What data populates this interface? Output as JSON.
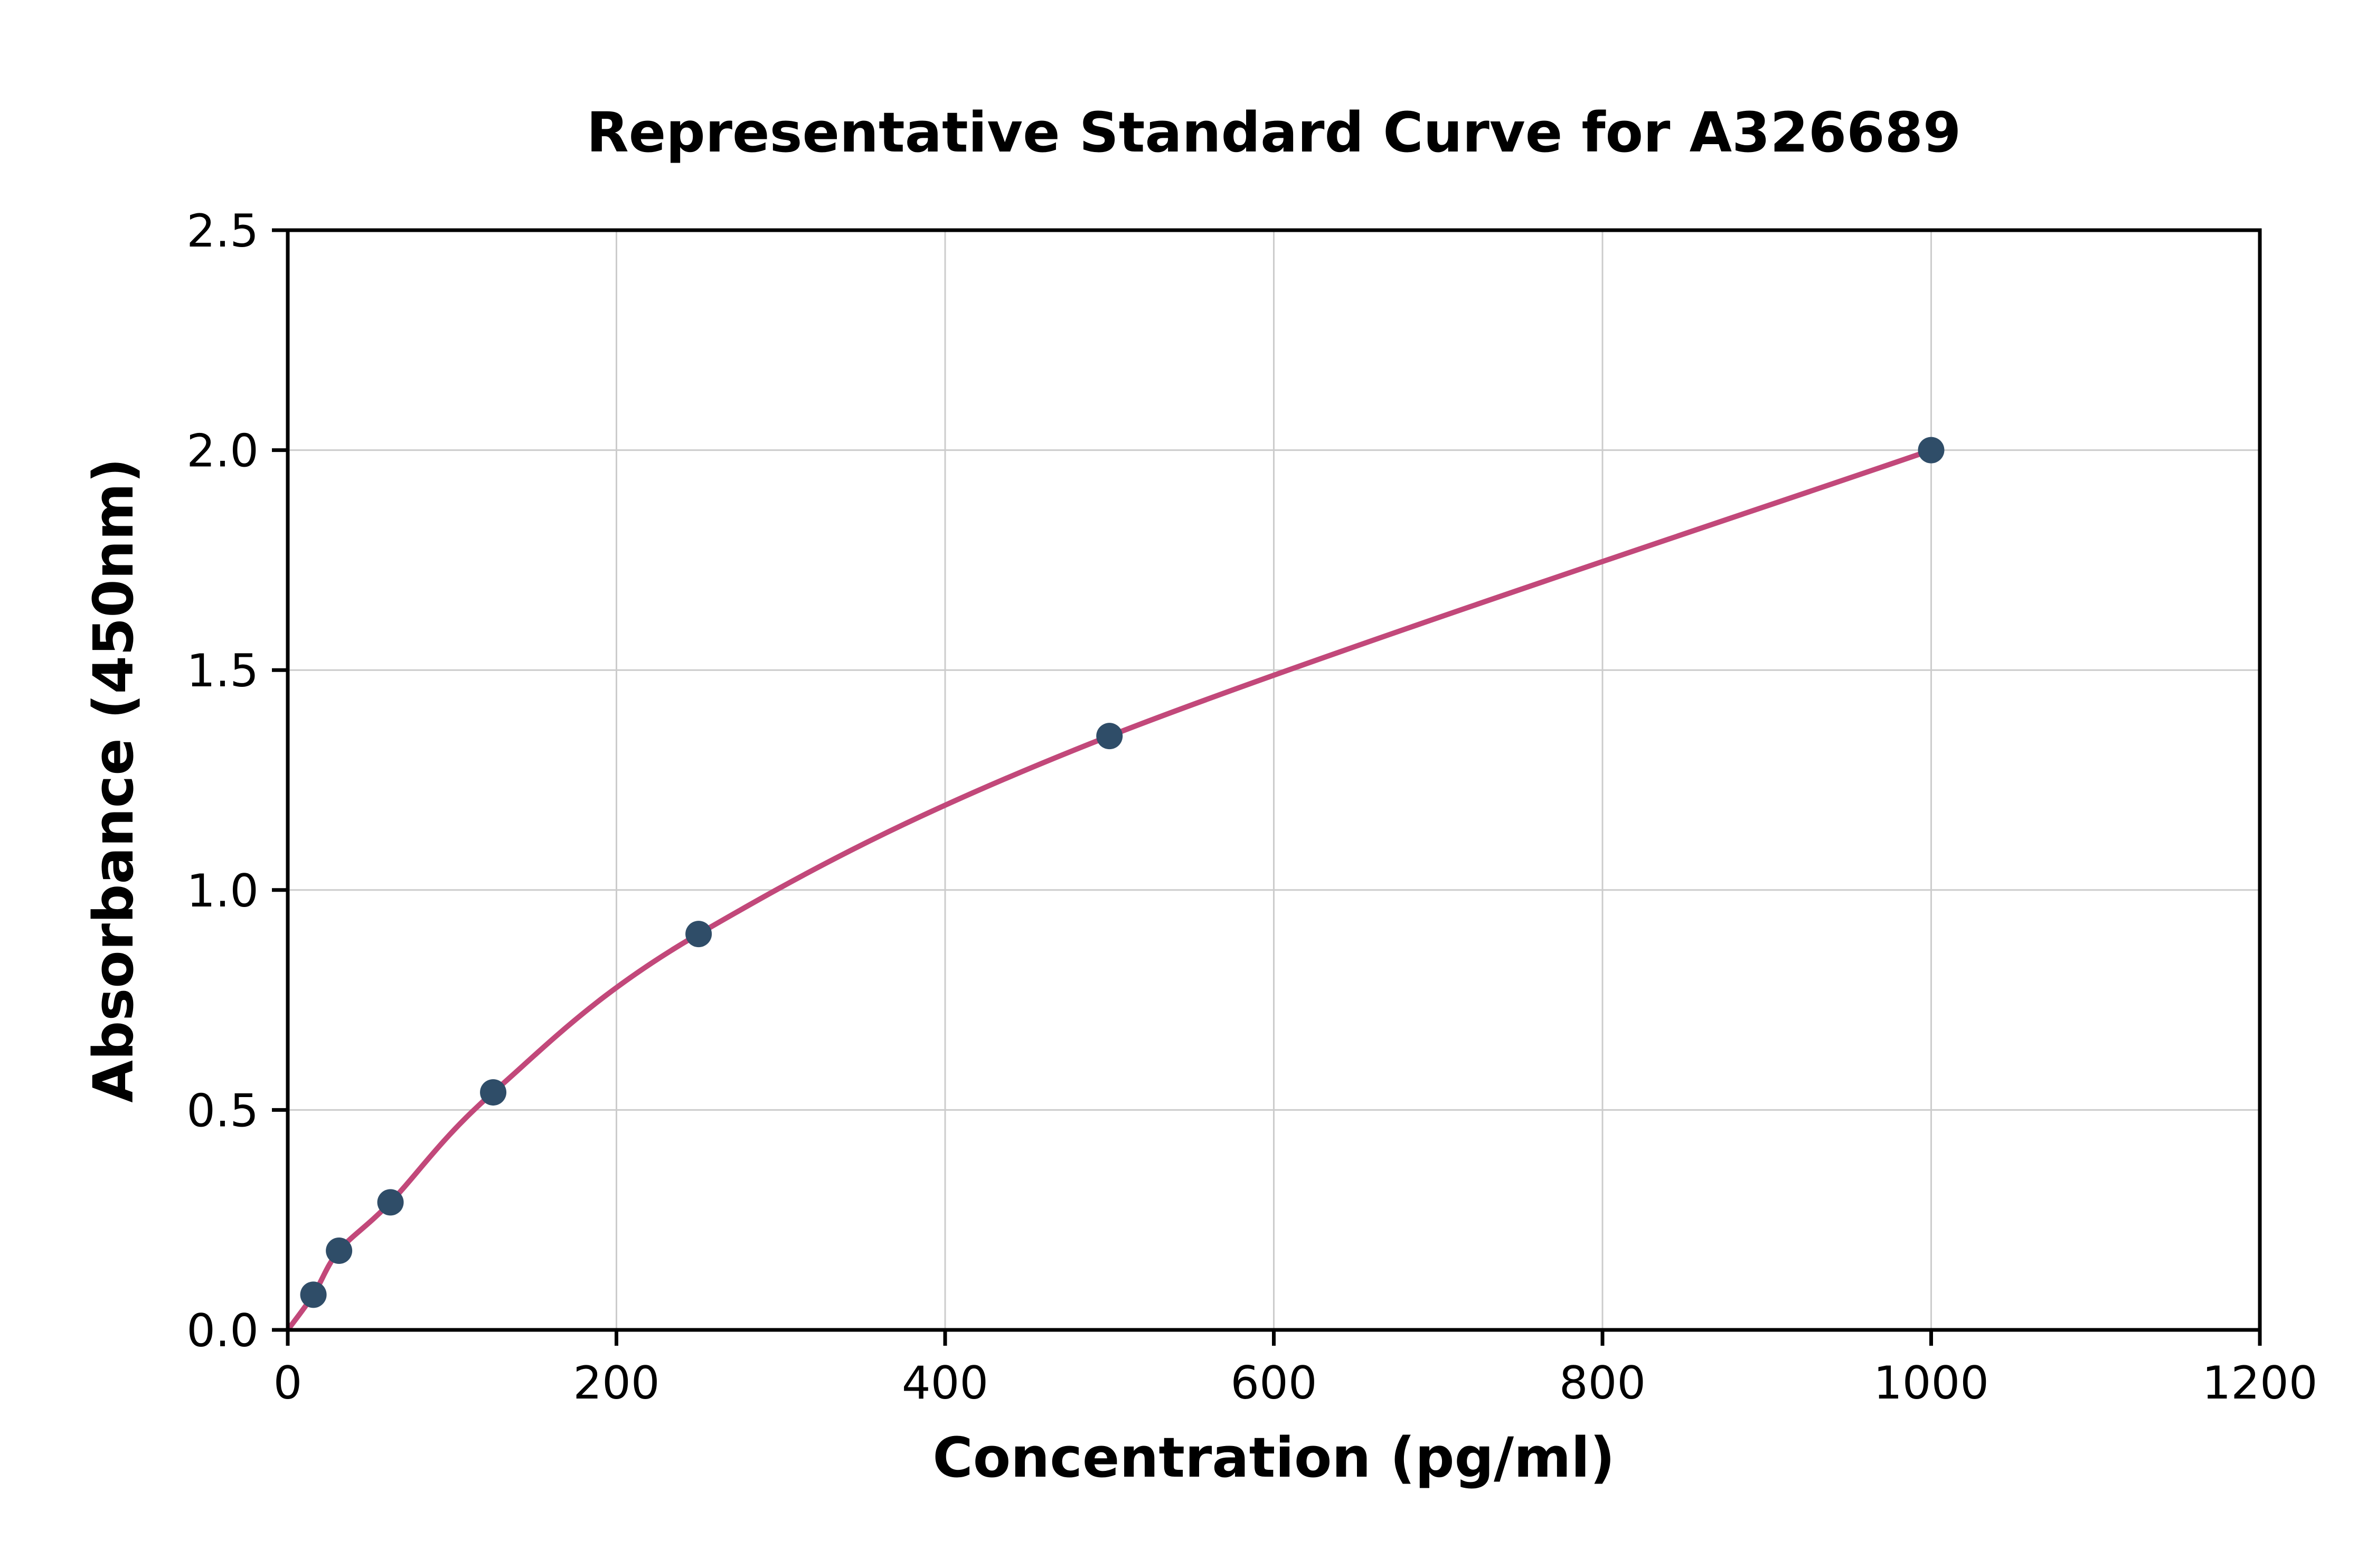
{
  "chart_data": {
    "type": "scatter",
    "title": "Representative Standard Curve for A326689",
    "xlabel": "Concentration (pg/ml)",
    "ylabel": "Absorbance (450nm)",
    "xlim": [
      0,
      1200
    ],
    "ylim": [
      0,
      2.5
    ],
    "x_ticks": [
      0,
      200,
      400,
      600,
      800,
      1000,
      1200
    ],
    "x_tick_labels": [
      "0",
      "200",
      "400",
      "600",
      "800",
      "1000",
      "1200"
    ],
    "y_ticks": [
      0,
      0.5,
      1.0,
      1.5,
      2.0,
      2.5
    ],
    "y_tick_labels": [
      "0.0",
      "0.5",
      "1.0",
      "1.5",
      "2.0",
      "2.5"
    ],
    "grid": true,
    "legend": "none",
    "points": [
      [
        15.6,
        0.08
      ],
      [
        31.2,
        0.18
      ],
      [
        62.5,
        0.29
      ],
      [
        125,
        0.54
      ],
      [
        250,
        0.9
      ],
      [
        500,
        1.35
      ],
      [
        1000,
        2.0
      ]
    ],
    "curve_start": [
      0,
      0.0
    ],
    "colors": {
      "point": "#2f4d68",
      "curve": "#c2487a",
      "grid": "#cccccc",
      "axis": "#000000",
      "background": "#ffffff"
    }
  }
}
